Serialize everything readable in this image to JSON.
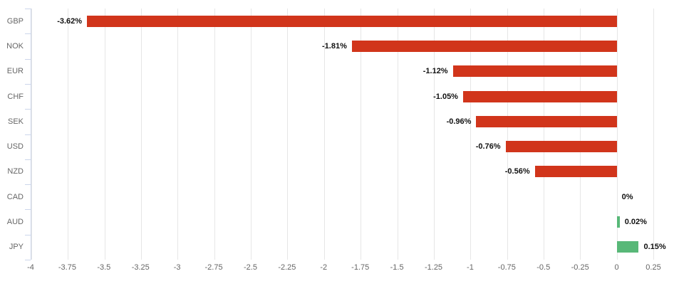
{
  "chart_data": {
    "type": "bar",
    "orientation": "horizontal",
    "title": "",
    "categories": [
      "GBP",
      "NOK",
      "EUR",
      "CHF",
      "SEK",
      "USD",
      "NZD",
      "CAD",
      "AUD",
      "JPY"
    ],
    "values": [
      -3.62,
      -1.81,
      -1.12,
      -1.05,
      -0.96,
      -0.76,
      -0.56,
      0,
      0.02,
      0.15
    ],
    "value_labels": [
      "-3.62%",
      "-1.81%",
      "-1.12%",
      "-1.05%",
      "-0.96%",
      "-0.76%",
      "-0.56%",
      "0%",
      "0.02%",
      "0.15%"
    ],
    "xlim": [
      -4,
      0.25
    ],
    "x_ticks": [
      -4,
      -3.75,
      -3.5,
      -3.25,
      -3,
      -2.75,
      -2.5,
      -2.25,
      -2,
      -1.75,
      -1.5,
      -1.25,
      -1,
      -0.75,
      -0.5,
      -0.25,
      0,
      0.25
    ],
    "x_tick_labels": [
      "-4",
      "-3.75",
      "-3.5",
      "-3.25",
      "-3",
      "-2.75",
      "-2.5",
      "-2.25",
      "-2",
      "-1.75",
      "-1.5",
      "-1.25",
      "-1",
      "-0.75",
      "-0.5",
      "-0.25",
      "0",
      "0.25"
    ],
    "grid": true,
    "legend": false,
    "xlabel": "",
    "ylabel": "",
    "colors": {
      "negative_bar": "#d1351b",
      "positive_bar": "#58b878",
      "gridline": "#e6e6e6",
      "axis_line": "#ccd6eb",
      "tick_label": "#666666",
      "value_label": "#111111",
      "background": "#ffffff"
    }
  }
}
